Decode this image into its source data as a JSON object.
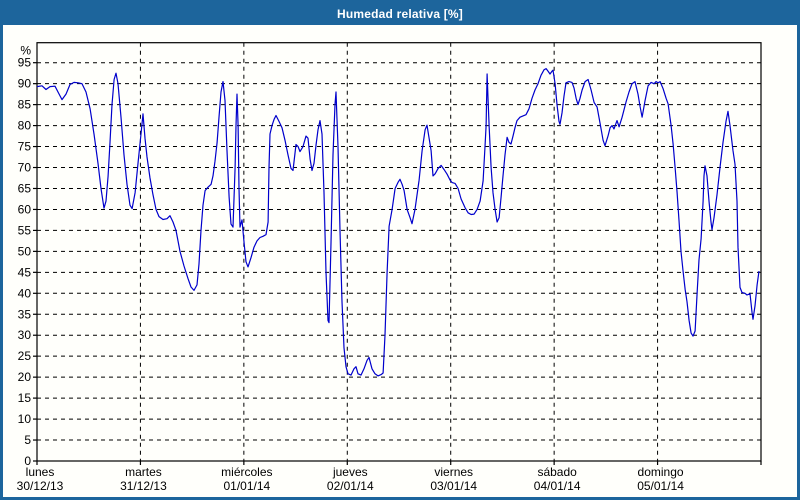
{
  "window": {
    "title": "Humedad relativa [%]"
  },
  "colors": {
    "accent_blue": "#1d659c",
    "line_blue": "#0000cc",
    "grid_color": "#000000",
    "panel_bg": "#fffffb",
    "title_text": "#ffffff"
  },
  "chart_data": {
    "type": "line",
    "title": "Humedad relativa [%]",
    "ylabel": "%",
    "ylim": [
      0,
      95
    ],
    "ytick_step": 5,
    "grid": "dashed",
    "legend_position": "none",
    "x_unit": "days_since_start",
    "xlim": [
      0,
      7
    ],
    "days": [
      {
        "name": "lunes",
        "date": "30/12/13"
      },
      {
        "name": "martes",
        "date": "31/12/13"
      },
      {
        "name": "miércoles",
        "date": "01/01/14"
      },
      {
        "name": "jueves",
        "date": "02/01/14"
      },
      {
        "name": "viernes",
        "date": "03/01/14"
      },
      {
        "name": "sábado",
        "date": "04/01/14"
      },
      {
        "name": "domingo",
        "date": "05/01/14"
      }
    ],
    "series": [
      {
        "name": "Humedad relativa [%]",
        "color": "#0000cc",
        "points": [
          [
            0.0,
            89.3
          ],
          [
            0.048,
            89.5
          ],
          [
            0.087,
            88.6
          ],
          [
            0.126,
            89.3
          ],
          [
            0.174,
            89.4
          ],
          [
            0.203,
            88.0
          ],
          [
            0.242,
            86.2
          ],
          [
            0.28,
            87.5
          ],
          [
            0.319,
            89.8
          ],
          [
            0.358,
            90.3
          ],
          [
            0.397,
            90.2
          ],
          [
            0.435,
            90.0
          ],
          [
            0.474,
            88.0
          ],
          [
            0.513,
            84.0
          ],
          [
            0.551,
            78.0
          ],
          [
            0.59,
            71.0
          ],
          [
            0.619,
            65.0
          ],
          [
            0.648,
            60.3
          ],
          [
            0.667,
            62.0
          ],
          [
            0.687,
            68.0
          ],
          [
            0.706,
            76.0
          ],
          [
            0.725,
            85.0
          ],
          [
            0.745,
            91.0
          ],
          [
            0.764,
            92.5
          ],
          [
            0.783,
            90.0
          ],
          [
            0.812,
            82.0
          ],
          [
            0.841,
            73.0
          ],
          [
            0.87,
            66.0
          ],
          [
            0.899,
            61.0
          ],
          [
            0.919,
            60.2
          ],
          [
            0.948,
            64.0
          ],
          [
            0.977,
            71.0
          ],
          [
            1.006,
            78.0
          ],
          [
            1.025,
            82.8
          ],
          [
            1.044,
            77.0
          ],
          [
            1.064,
            72.5
          ],
          [
            1.093,
            67.5
          ],
          [
            1.122,
            63.5
          ],
          [
            1.151,
            60.0
          ],
          [
            1.18,
            58.3
          ],
          [
            1.218,
            57.6
          ],
          [
            1.257,
            57.8
          ],
          [
            1.286,
            58.5
          ],
          [
            1.315,
            57.0
          ],
          [
            1.344,
            55.0
          ],
          [
            1.383,
            50.0
          ],
          [
            1.421,
            46.5
          ],
          [
            1.46,
            43.5
          ],
          [
            1.489,
            41.5
          ],
          [
            1.518,
            40.7
          ],
          [
            1.547,
            42.0
          ],
          [
            1.566,
            47.0
          ],
          [
            1.586,
            55.0
          ],
          [
            1.605,
            61.0
          ],
          [
            1.625,
            64.5
          ],
          [
            1.653,
            65.3
          ],
          [
            1.683,
            66.0
          ],
          [
            1.702,
            68.0
          ],
          [
            1.721,
            71.5
          ],
          [
            1.741,
            76.0
          ],
          [
            1.76,
            82.0
          ],
          [
            1.779,
            88.0
          ],
          [
            1.798,
            90.5
          ],
          [
            1.818,
            86.0
          ],
          [
            1.837,
            74.0
          ],
          [
            1.857,
            63.0
          ],
          [
            1.876,
            56.5
          ],
          [
            1.895,
            55.8
          ],
          [
            1.915,
            70.0
          ],
          [
            1.924,
            80.0
          ],
          [
            1.934,
            87.5
          ],
          [
            1.944,
            80.0
          ],
          [
            1.953,
            65.0
          ],
          [
            1.963,
            55.8
          ],
          [
            1.982,
            57.5
          ],
          [
            2.002,
            52.0
          ],
          [
            2.021,
            47.5
          ],
          [
            2.04,
            46.3
          ],
          [
            2.069,
            48.5
          ],
          [
            2.098,
            51.0
          ],
          [
            2.127,
            52.5
          ],
          [
            2.156,
            53.3
          ],
          [
            2.185,
            53.6
          ],
          [
            2.214,
            54.0
          ],
          [
            2.234,
            57.0
          ],
          [
            2.243,
            70.0
          ],
          [
            2.253,
            78.0
          ],
          [
            2.272,
            80.0
          ],
          [
            2.292,
            81.5
          ],
          [
            2.311,
            82.4
          ],
          [
            2.34,
            81.0
          ],
          [
            2.369,
            79.5
          ],
          [
            2.398,
            76.5
          ],
          [
            2.427,
            73.0
          ],
          [
            2.456,
            69.8
          ],
          [
            2.475,
            69.3
          ],
          [
            2.504,
            75.5
          ],
          [
            2.524,
            75.0
          ],
          [
            2.543,
            73.8
          ],
          [
            2.572,
            75.0
          ],
          [
            2.601,
            77.5
          ],
          [
            2.62,
            77.0
          ],
          [
            2.64,
            72.0
          ],
          [
            2.659,
            69.3
          ],
          [
            2.678,
            71.0
          ],
          [
            2.698,
            75.5
          ],
          [
            2.717,
            79.0
          ],
          [
            2.736,
            81.2
          ],
          [
            2.756,
            78.0
          ],
          [
            2.775,
            64.0
          ],
          [
            2.794,
            45.0
          ],
          [
            2.814,
            33.5
          ],
          [
            2.823,
            33.0
          ],
          [
            2.843,
            52.0
          ],
          [
            2.862,
            73.0
          ],
          [
            2.881,
            85.0
          ],
          [
            2.891,
            88.0
          ],
          [
            2.91,
            75.0
          ],
          [
            2.93,
            55.0
          ],
          [
            2.949,
            38.0
          ],
          [
            2.968,
            27.0
          ],
          [
            2.988,
            22.5
          ],
          [
            3.007,
            20.8
          ],
          [
            3.036,
            20.5
          ],
          [
            3.065,
            22.0
          ],
          [
            3.084,
            22.5
          ],
          [
            3.104,
            20.8
          ],
          [
            3.133,
            20.5
          ],
          [
            3.162,
            22.0
          ],
          [
            3.191,
            24.0
          ],
          [
            3.21,
            24.7
          ],
          [
            3.239,
            22.0
          ],
          [
            3.268,
            20.8
          ],
          [
            3.297,
            20.3
          ],
          [
            3.327,
            20.6
          ],
          [
            3.346,
            21.0
          ],
          [
            3.365,
            30.0
          ],
          [
            3.385,
            45.0
          ],
          [
            3.404,
            56.0
          ],
          [
            3.433,
            60.0
          ],
          [
            3.462,
            65.0
          ],
          [
            3.491,
            66.5
          ],
          [
            3.51,
            67.2
          ],
          [
            3.53,
            66.0
          ],
          [
            3.549,
            64.5
          ],
          [
            3.578,
            60.0
          ],
          [
            3.607,
            58.0
          ],
          [
            3.626,
            56.6
          ],
          [
            3.655,
            60.0
          ],
          [
            3.694,
            67.0
          ],
          [
            3.723,
            74.0
          ],
          [
            3.752,
            79.0
          ],
          [
            3.771,
            80.1
          ],
          [
            3.791,
            77.0
          ],
          [
            3.81,
            74.0
          ],
          [
            3.829,
            68.0
          ],
          [
            3.849,
            68.5
          ],
          [
            3.878,
            69.8
          ],
          [
            3.907,
            70.5
          ],
          [
            3.936,
            69.5
          ],
          [
            3.965,
            68.4
          ],
          [
            3.994,
            67.0
          ],
          [
            4.013,
            66.4
          ],
          [
            4.042,
            66.2
          ],
          [
            4.071,
            65.0
          ],
          [
            4.1,
            62.5
          ],
          [
            4.139,
            60.4
          ],
          [
            4.168,
            59.2
          ],
          [
            4.197,
            58.8
          ],
          [
            4.226,
            58.9
          ],
          [
            4.255,
            60.0
          ],
          [
            4.284,
            62.0
          ],
          [
            4.313,
            66.8
          ],
          [
            4.332,
            75.4
          ],
          [
            4.342,
            80.0
          ],
          [
            4.352,
            92.3
          ],
          [
            4.361,
            86.0
          ],
          [
            4.371,
            80.0
          ],
          [
            4.39,
            70.0
          ],
          [
            4.409,
            64.0
          ],
          [
            4.429,
            60.0
          ],
          [
            4.448,
            57.0
          ],
          [
            4.468,
            58.0
          ],
          [
            4.487,
            63.0
          ],
          [
            4.506,
            68.0
          ],
          [
            4.525,
            73.0
          ],
          [
            4.545,
            77.2
          ],
          [
            4.564,
            76.0
          ],
          [
            4.583,
            75.6
          ],
          [
            4.603,
            77.6
          ],
          [
            4.622,
            79.5
          ],
          [
            4.641,
            81.2
          ],
          [
            4.67,
            82.0
          ],
          [
            4.699,
            82.3
          ],
          [
            4.728,
            82.6
          ],
          [
            4.757,
            84.0
          ],
          [
            4.786,
            86.5
          ],
          [
            4.815,
            88.5
          ],
          [
            4.844,
            90.0
          ],
          [
            4.873,
            92.0
          ],
          [
            4.902,
            93.3
          ],
          [
            4.922,
            93.6
          ],
          [
            4.941,
            93.0
          ],
          [
            4.96,
            92.3
          ],
          [
            4.98,
            93.0
          ],
          [
            4.989,
            93.2
          ],
          [
            5.009,
            90.0
          ],
          [
            5.028,
            85.0
          ],
          [
            5.047,
            81.0
          ],
          [
            5.057,
            80.3
          ],
          [
            5.076,
            83.0
          ],
          [
            5.095,
            87.0
          ],
          [
            5.115,
            90.2
          ],
          [
            5.144,
            90.5
          ],
          [
            5.173,
            90.3
          ],
          [
            5.192,
            89.0
          ],
          [
            5.212,
            86.5
          ],
          [
            5.231,
            85.0
          ],
          [
            5.25,
            86.5
          ],
          [
            5.27,
            88.5
          ],
          [
            5.299,
            90.5
          ],
          [
            5.328,
            91.0
          ],
          [
            5.357,
            88.5
          ],
          [
            5.386,
            85.5
          ],
          [
            5.415,
            84.4
          ],
          [
            5.444,
            80.5
          ],
          [
            5.473,
            76.5
          ],
          [
            5.492,
            75.2
          ],
          [
            5.521,
            77.5
          ],
          [
            5.541,
            79.5
          ],
          [
            5.56,
            80.0
          ],
          [
            5.579,
            79.2
          ],
          [
            5.608,
            81.2
          ],
          [
            5.628,
            79.7
          ],
          [
            5.657,
            82.0
          ],
          [
            5.695,
            85.6
          ],
          [
            5.724,
            88.0
          ],
          [
            5.753,
            90.0
          ],
          [
            5.782,
            90.5
          ],
          [
            5.811,
            87.5
          ],
          [
            5.831,
            84.5
          ],
          [
            5.85,
            82.0
          ],
          [
            5.879,
            86.0
          ],
          [
            5.908,
            89.5
          ],
          [
            5.937,
            90.3
          ],
          [
            5.966,
            90.0
          ],
          [
            5.986,
            90.5
          ],
          [
            6.005,
            90.2
          ],
          [
            6.024,
            90.5
          ],
          [
            6.053,
            88.8
          ],
          [
            6.082,
            86.5
          ],
          [
            6.102,
            85.2
          ],
          [
            6.131,
            80.0
          ],
          [
            6.15,
            75.6
          ],
          [
            6.169,
            70.0
          ],
          [
            6.189,
            64.0
          ],
          [
            6.208,
            57.0
          ],
          [
            6.227,
            50.0
          ],
          [
            6.247,
            45.2
          ],
          [
            6.266,
            41.0
          ],
          [
            6.285,
            38.0
          ],
          [
            6.305,
            33.5
          ],
          [
            6.324,
            30.5
          ],
          [
            6.343,
            29.8
          ],
          [
            6.363,
            31.0
          ],
          [
            6.382,
            40.0
          ],
          [
            6.401,
            48.0
          ],
          [
            6.421,
            53.0
          ],
          [
            6.44,
            62.0
          ],
          [
            6.449,
            68.0
          ],
          [
            6.459,
            70.4
          ],
          [
            6.478,
            68.0
          ],
          [
            6.497,
            62.0
          ],
          [
            6.517,
            57.0
          ],
          [
            6.526,
            55.2
          ],
          [
            6.546,
            58.0
          ],
          [
            6.575,
            63.5
          ],
          [
            6.604,
            70.0
          ],
          [
            6.633,
            76.0
          ],
          [
            6.662,
            81.0
          ],
          [
            6.681,
            83.4
          ],
          [
            6.7,
            80.0
          ],
          [
            6.729,
            74.0
          ],
          [
            6.749,
            70.8
          ],
          [
            6.768,
            62.0
          ],
          [
            6.778,
            51.0
          ],
          [
            6.797,
            41.4
          ],
          [
            6.816,
            40.2
          ],
          [
            6.845,
            40.0
          ],
          [
            6.865,
            39.6
          ],
          [
            6.894,
            39.9
          ],
          [
            6.913,
            35.5
          ],
          [
            6.923,
            33.8
          ],
          [
            6.942,
            37.0
          ],
          [
            6.962,
            42.0
          ],
          [
            6.981,
            45.3
          ]
        ]
      }
    ]
  }
}
